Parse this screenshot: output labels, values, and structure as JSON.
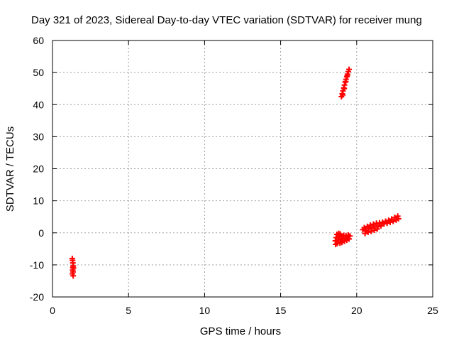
{
  "chart_data": {
    "type": "scatter",
    "title": "Day 321 of 2023, Sidereal Day-to-day VTEC variation (SDTVAR) for receiver mung",
    "xlabel": "GPS time / hours",
    "ylabel": "SDTVAR / TECUs",
    "xlim": [
      0,
      25
    ],
    "ylim": [
      -20,
      60
    ],
    "xticks": [
      "0",
      "5",
      "10",
      "15",
      "20",
      "25"
    ],
    "yticks": [
      "-20",
      "-10",
      "0",
      "10",
      "20",
      "30",
      "40",
      "50",
      "60"
    ],
    "grid": true,
    "marker": "plus",
    "color": "#ff0000",
    "series": [
      {
        "points": [
          [
            1.3,
            -8.0
          ],
          [
            1.32,
            -8.6
          ],
          [
            1.34,
            -9.4
          ],
          [
            1.36,
            -10.3
          ],
          [
            1.38,
            -11.0
          ],
          [
            1.33,
            -11.6
          ],
          [
            1.35,
            -12.2
          ],
          [
            1.31,
            -12.8
          ],
          [
            1.36,
            -13.4
          ],
          [
            1.34,
            -10.8
          ],
          [
            19.0,
            42.5
          ],
          [
            19.05,
            43.4
          ],
          [
            19.1,
            44.3
          ],
          [
            19.15,
            45.2
          ],
          [
            19.2,
            46.1
          ],
          [
            19.25,
            47.0
          ],
          [
            19.3,
            47.9
          ],
          [
            19.35,
            48.7
          ],
          [
            19.4,
            49.5
          ],
          [
            19.45,
            50.3
          ],
          [
            19.5,
            51.0
          ],
          [
            19.08,
            43.0
          ],
          [
            19.18,
            45.0
          ],
          [
            19.28,
            47.2
          ],
          [
            19.38,
            49.0
          ],
          [
            18.6,
            -2.5
          ],
          [
            18.65,
            -1.5
          ],
          [
            18.7,
            -0.5
          ],
          [
            18.75,
            -3.0
          ],
          [
            18.8,
            -2.0
          ],
          [
            18.85,
            -1.0
          ],
          [
            18.9,
            -3.2
          ],
          [
            18.95,
            -2.2
          ],
          [
            19.0,
            -1.2
          ],
          [
            19.05,
            -2.8
          ],
          [
            19.1,
            -1.8
          ],
          [
            19.15,
            -0.8
          ],
          [
            19.2,
            -2.6
          ],
          [
            19.25,
            -1.6
          ],
          [
            19.3,
            -0.9
          ],
          [
            19.35,
            -2.3
          ],
          [
            19.4,
            -1.4
          ],
          [
            19.45,
            -0.7
          ],
          [
            19.5,
            -1.9
          ],
          [
            19.55,
            -1.0
          ],
          [
            18.62,
            -3.6
          ],
          [
            18.72,
            -3.3
          ],
          [
            18.82,
            -0.2
          ],
          [
            18.92,
            -0.4
          ],
          [
            19.02,
            -3.0
          ],
          [
            20.4,
            1.0
          ],
          [
            20.5,
            1.6
          ],
          [
            20.6,
            0.6
          ],
          [
            20.7,
            2.0
          ],
          [
            20.8,
            1.2
          ],
          [
            20.9,
            2.4
          ],
          [
            21.0,
            1.5
          ],
          [
            21.1,
            2.7
          ],
          [
            21.2,
            1.8
          ],
          [
            21.3,
            3.0
          ],
          [
            21.4,
            1.9
          ],
          [
            21.5,
            3.1
          ],
          [
            21.6,
            2.2
          ],
          [
            21.7,
            3.3
          ],
          [
            21.8,
            2.8
          ],
          [
            21.9,
            3.6
          ],
          [
            22.0,
            3.0
          ],
          [
            22.1,
            3.9
          ],
          [
            22.2,
            3.3
          ],
          [
            22.3,
            4.3
          ],
          [
            22.4,
            3.6
          ],
          [
            22.5,
            4.8
          ],
          [
            22.6,
            4.0
          ],
          [
            22.7,
            5.2
          ],
          [
            22.75,
            4.4
          ],
          [
            20.55,
            -0.2
          ],
          [
            20.75,
            0.2
          ],
          [
            20.95,
            0.5
          ],
          [
            21.15,
            0.8
          ],
          [
            21.35,
            1.2
          ]
        ]
      }
    ]
  }
}
